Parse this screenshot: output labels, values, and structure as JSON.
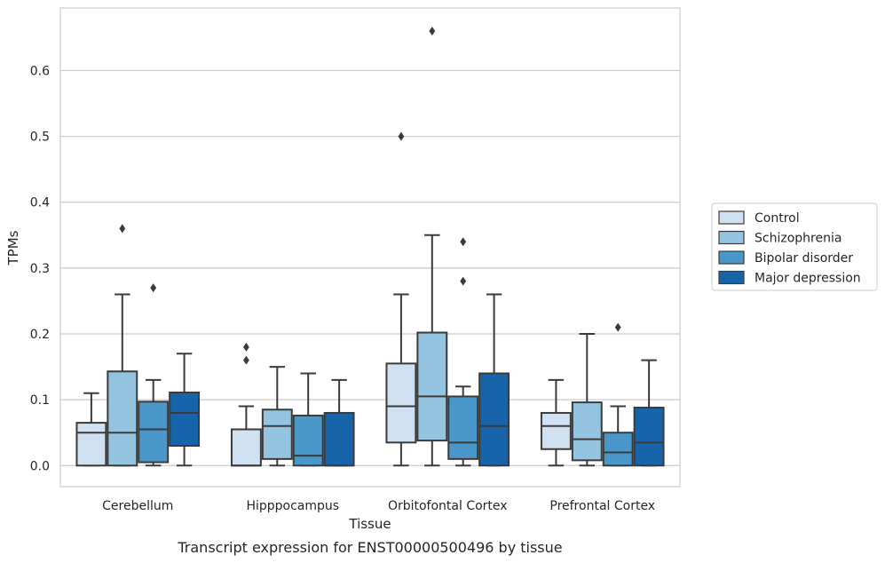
{
  "caption": "Transcript expression for ENST00000500496 by tissue",
  "chart_data": {
    "type": "box",
    "title": "",
    "xlabel": "Tissue",
    "ylabel": "TPMs",
    "ylim": [
      -0.032,
      0.695
    ],
    "yticks": [
      "0.0",
      "0.1",
      "0.2",
      "0.3",
      "0.4",
      "0.5",
      "0.6"
    ],
    "grid": "horizontal",
    "legend_position": "right",
    "categories": [
      "Cerebellum",
      "Hipppocampus",
      "Orbitofontal Cortex",
      "Prefrontal Cortex"
    ],
    "series": [
      {
        "name": "Control",
        "color": "#d0e1f2",
        "boxes": [
          {
            "whislo": 0.0,
            "q1": 0.0,
            "med": 0.05,
            "q3": 0.065,
            "whishi": 0.11,
            "fliers": []
          },
          {
            "whislo": 0.0,
            "q1": 0.0,
            "med": 0.0,
            "q3": 0.055,
            "whishi": 0.09,
            "fliers": [
              0.16,
              0.18
            ]
          },
          {
            "whislo": 0.0,
            "q1": 0.035,
            "med": 0.09,
            "q3": 0.155,
            "whishi": 0.26,
            "fliers": [
              0.5
            ]
          },
          {
            "whislo": 0.0,
            "q1": 0.025,
            "med": 0.06,
            "q3": 0.08,
            "whishi": 0.13,
            "fliers": []
          }
        ]
      },
      {
        "name": "Schizophrenia",
        "color": "#94c4df",
        "boxes": [
          {
            "whislo": 0.0,
            "q1": 0.0,
            "med": 0.05,
            "q3": 0.143,
            "whishi": 0.26,
            "fliers": [
              0.36
            ]
          },
          {
            "whislo": 0.0,
            "q1": 0.01,
            "med": 0.06,
            "q3": 0.085,
            "whishi": 0.15,
            "fliers": []
          },
          {
            "whislo": 0.0,
            "q1": 0.038,
            "med": 0.105,
            "q3": 0.202,
            "whishi": 0.35,
            "fliers": [
              0.66
            ]
          },
          {
            "whislo": 0.0,
            "q1": 0.008,
            "med": 0.04,
            "q3": 0.096,
            "whishi": 0.2,
            "fliers": []
          }
        ]
      },
      {
        "name": "Bipolar disorder",
        "color": "#4a98c9",
        "boxes": [
          {
            "whislo": 0.0,
            "q1": 0.005,
            "med": 0.055,
            "q3": 0.097,
            "whishi": 0.13,
            "fliers": [
              0.27
            ]
          },
          {
            "whislo": 0.0,
            "q1": 0.0,
            "med": 0.015,
            "q3": 0.076,
            "whishi": 0.14,
            "fliers": []
          },
          {
            "whislo": 0.0,
            "q1": 0.01,
            "med": 0.035,
            "q3": 0.105,
            "whishi": 0.12,
            "fliers": [
              0.28,
              0.34
            ]
          },
          {
            "whislo": 0.0,
            "q1": 0.0,
            "med": 0.02,
            "q3": 0.05,
            "whishi": 0.09,
            "fliers": [
              0.21
            ]
          }
        ]
      },
      {
        "name": "Major depression",
        "color": "#1764ab",
        "boxes": [
          {
            "whislo": 0.0,
            "q1": 0.03,
            "med": 0.08,
            "q3": 0.111,
            "whishi": 0.17,
            "fliers": []
          },
          {
            "whislo": 0.0,
            "q1": 0.0,
            "med": 0.0,
            "q3": 0.08,
            "whishi": 0.13,
            "fliers": []
          },
          {
            "whislo": 0.0,
            "q1": 0.0,
            "med": 0.06,
            "q3": 0.14,
            "whishi": 0.26,
            "fliers": []
          },
          {
            "whislo": 0.0,
            "q1": 0.0,
            "med": 0.035,
            "q3": 0.088,
            "whishi": 0.16,
            "fliers": []
          }
        ]
      }
    ]
  }
}
